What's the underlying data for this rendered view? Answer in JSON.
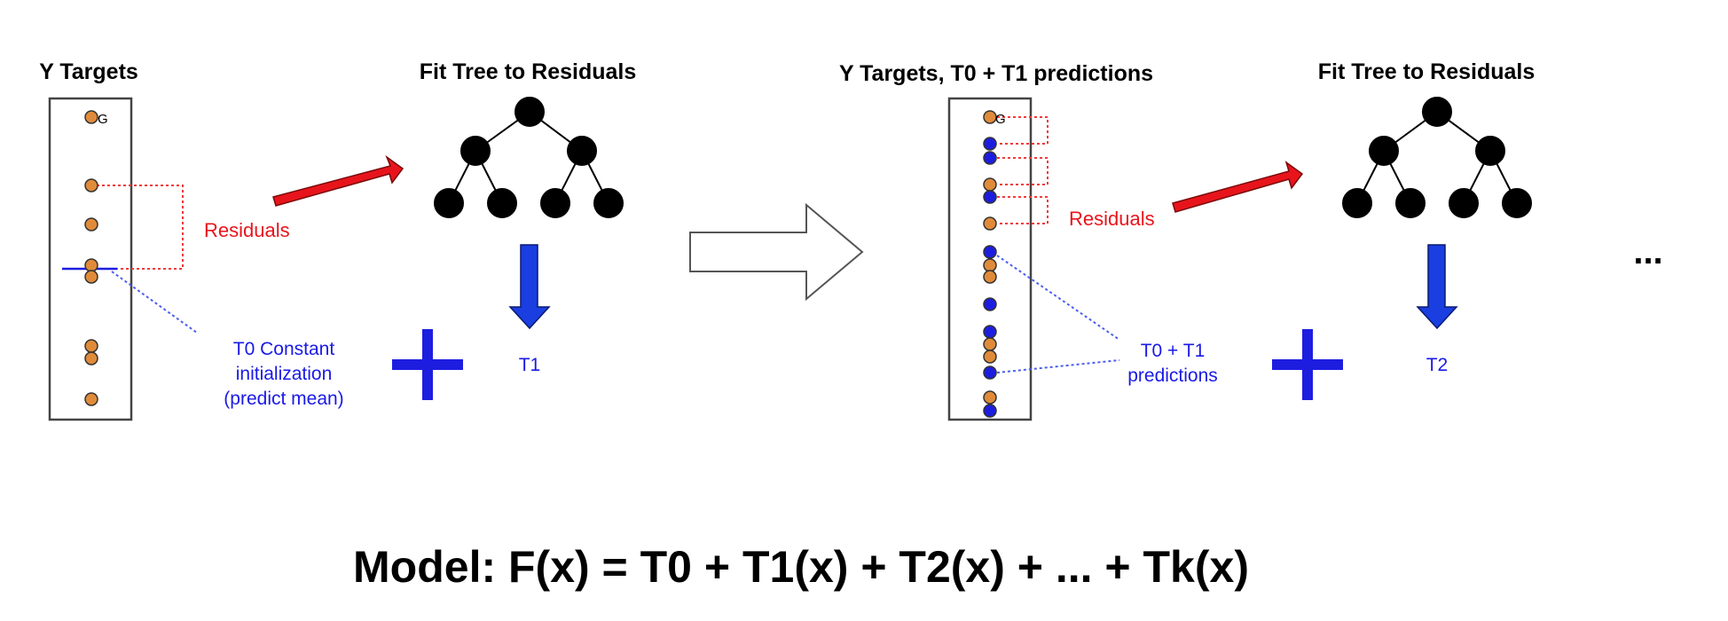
{
  "colors": {
    "orange_point": "#e08b3a",
    "blue_point": "#1d1de0",
    "red_arrow": "#e8141c",
    "blue_arrow": "#1a3ee0",
    "residual_line": "#f03a3a",
    "prediction_line": "#4a5ef0"
  },
  "panel1": {
    "title": "Y Targets",
    "point_label": "G",
    "residuals_label": "Residuals",
    "init_label_lines": [
      "T0 Constant",
      "initialization",
      "(predict  mean)"
    ]
  },
  "tree1": {
    "title": "Fit Tree to Residuals",
    "output_label": "T1"
  },
  "panel2": {
    "title": "Y Targets, T0 + T1 predictions",
    "point_label": "G",
    "residuals_label": "Residuals",
    "pred_label_lines": [
      "T0 + T1",
      "predictions"
    ]
  },
  "tree2": {
    "title": "Fit Tree to Residuals",
    "output_label": "T2"
  },
  "ellipsis": "...",
  "formula": "Model: F(x) = T0 + T1(x) + T2(x) + ... + Tk(x)"
}
